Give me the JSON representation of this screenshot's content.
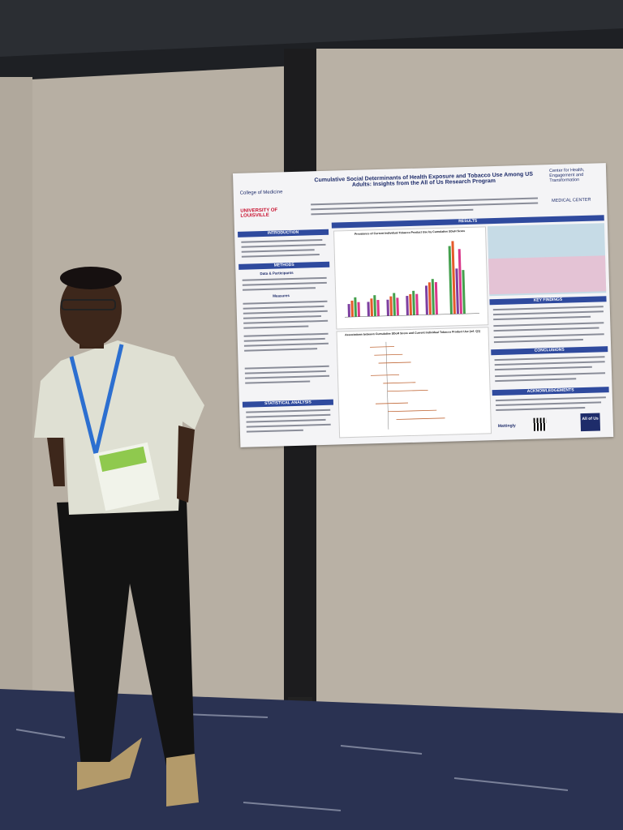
{
  "poster": {
    "title": "Cumulative Social Determinants of Health Exposure and Tobacco Use Among US Adults: Insights from the All of Us Research Program",
    "logos": {
      "left_top": "College of Medicine",
      "left_bottom": "UNIVERSITY OF LOUISVILLE",
      "right_top": "Center for Health, Engagement and Transformation",
      "right_bottom": "MEDICAL CENTER"
    },
    "sections": {
      "introduction": "INTRODUCTION",
      "methods": "METHODS",
      "statistical_analysis": "STATISTICAL ANALYSIS",
      "results": "RESULTS",
      "key_findings": "KEY FINDINGS",
      "conclusions": "CONCLUSIONS",
      "acknowledgements": "ACKNOWLEDGEMENTS"
    },
    "subheadings": {
      "data": "Data & Participants",
      "measures": "Measures"
    },
    "chart_titles": [
      "Prevalence of Current Individual Tobacco Product Use by Cumulative SDoH Score",
      "Associations between Cumulative SDoH Score and Current Individual Tobacco Product Use (ref. Q1)"
    ],
    "footer_logos": {
      "lab": "Mattingly",
      "program": "All of Us"
    }
  }
}
